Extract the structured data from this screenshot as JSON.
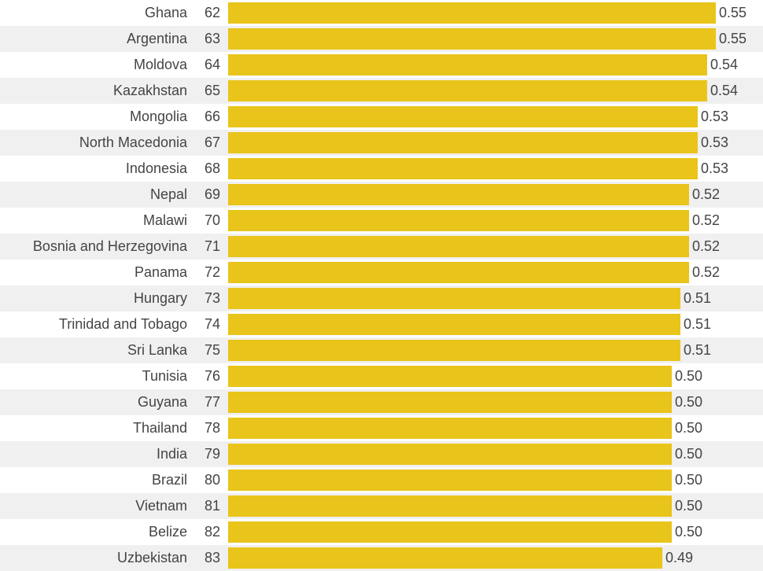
{
  "colors": {
    "bar": "#e9c41a",
    "text": "#444444",
    "stripe": "#f0f0f0"
  },
  "chart_data": {
    "type": "bar",
    "orientation": "horizontal",
    "title": "",
    "xlabel": "",
    "ylabel": "",
    "grid": false,
    "rows": [
      {
        "country": "Ghana",
        "rank": "62",
        "value": 0.55,
        "label": "0.55"
      },
      {
        "country": "Argentina",
        "rank": "63",
        "value": 0.55,
        "label": "0.55"
      },
      {
        "country": "Moldova",
        "rank": "64",
        "value": 0.54,
        "label": "0.54"
      },
      {
        "country": "Kazakhstan",
        "rank": "65",
        "value": 0.54,
        "label": "0.54"
      },
      {
        "country": "Mongolia",
        "rank": "66",
        "value": 0.53,
        "label": "0.53"
      },
      {
        "country": "North Macedonia",
        "rank": "67",
        "value": 0.53,
        "label": "0.53"
      },
      {
        "country": "Indonesia",
        "rank": "68",
        "value": 0.53,
        "label": "0.53"
      },
      {
        "country": "Nepal",
        "rank": "69",
        "value": 0.52,
        "label": "0.52"
      },
      {
        "country": "Malawi",
        "rank": "70",
        "value": 0.52,
        "label": "0.52"
      },
      {
        "country": "Bosnia and Herzegovina",
        "rank": "71",
        "value": 0.52,
        "label": "0.52"
      },
      {
        "country": "Panama",
        "rank": "72",
        "value": 0.52,
        "label": "0.52"
      },
      {
        "country": "Hungary",
        "rank": "73",
        "value": 0.51,
        "label": "0.51"
      },
      {
        "country": "Trinidad and Tobago",
        "rank": "74",
        "value": 0.51,
        "label": "0.51"
      },
      {
        "country": "Sri Lanka",
        "rank": "75",
        "value": 0.51,
        "label": "0.51"
      },
      {
        "country": "Tunisia",
        "rank": "76",
        "value": 0.5,
        "label": "0.50"
      },
      {
        "country": "Guyana",
        "rank": "77",
        "value": 0.5,
        "label": "0.50"
      },
      {
        "country": "Thailand",
        "rank": "78",
        "value": 0.5,
        "label": "0.50"
      },
      {
        "country": "India",
        "rank": "79",
        "value": 0.5,
        "label": "0.50"
      },
      {
        "country": "Brazil",
        "rank": "80",
        "value": 0.5,
        "label": "0.50"
      },
      {
        "country": "Vietnam",
        "rank": "81",
        "value": 0.5,
        "label": "0.50"
      },
      {
        "country": "Belize",
        "rank": "82",
        "value": 0.5,
        "label": "0.50"
      },
      {
        "country": "Uzbekistan",
        "rank": "83",
        "value": 0.49,
        "label": "0.49"
      }
    ]
  }
}
